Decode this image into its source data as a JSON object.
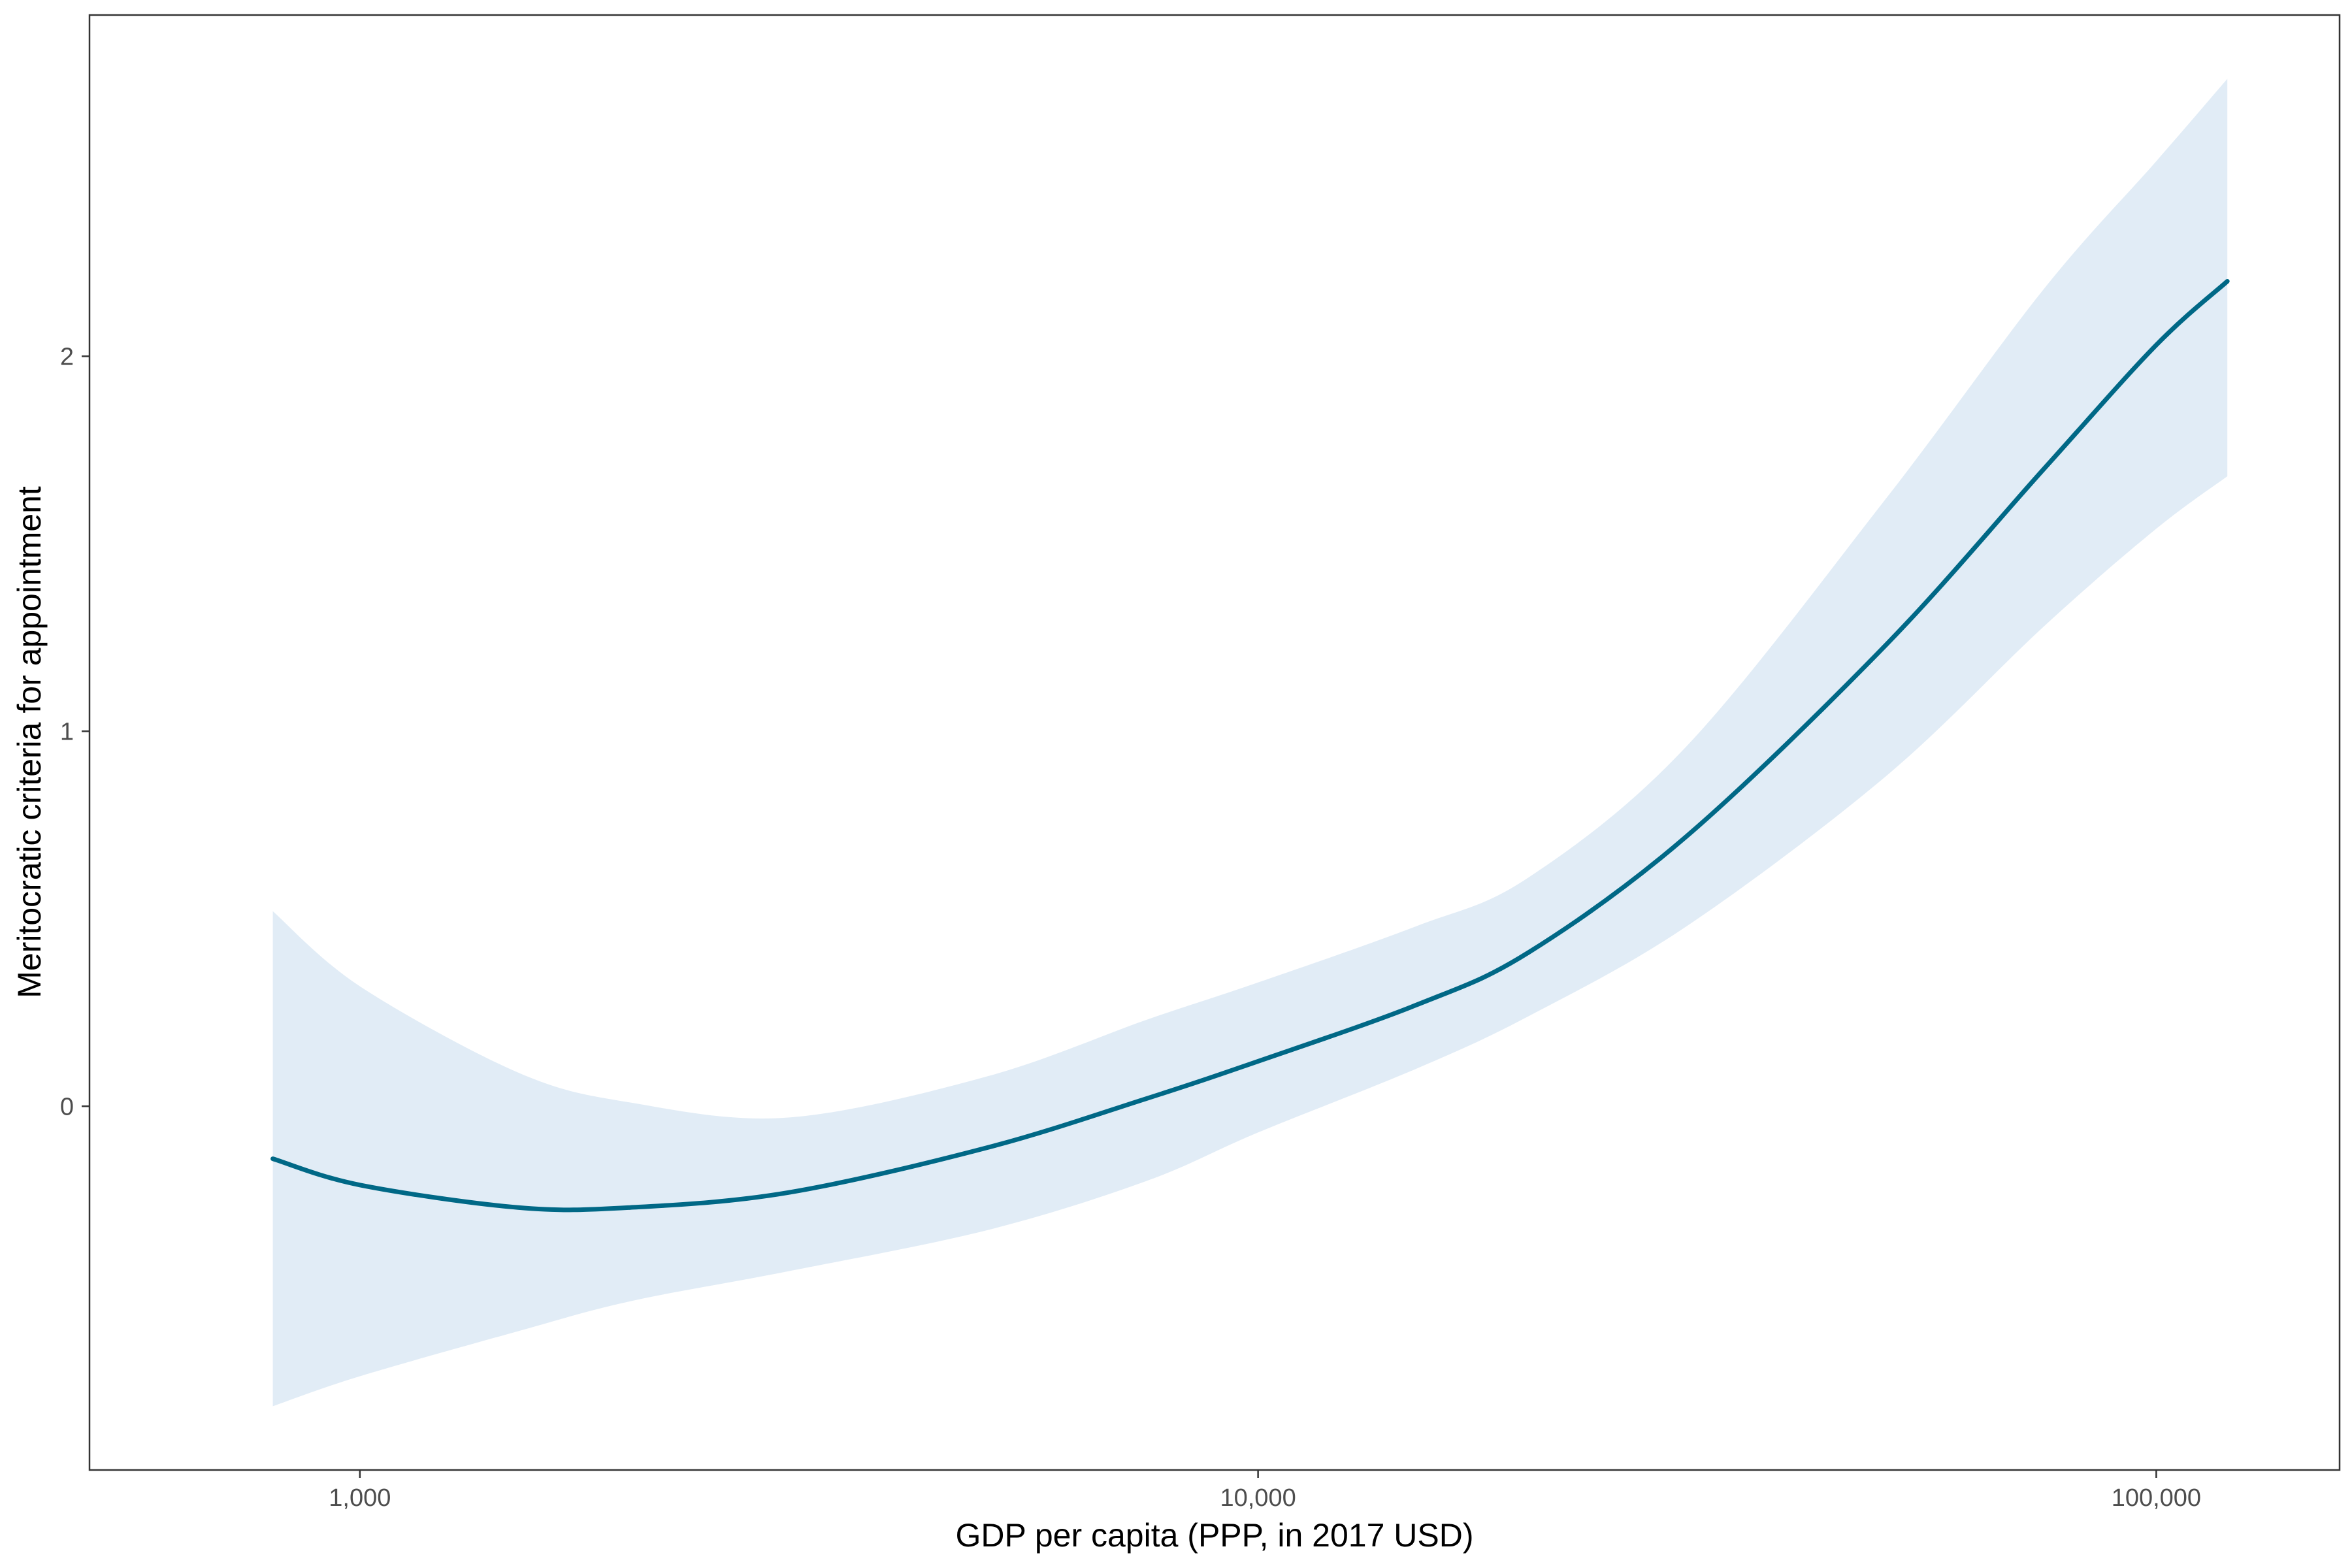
{
  "chart_data": {
    "type": "line",
    "title": "",
    "xlabel": "GDP per capita (PPP, in 2017 USD)",
    "ylabel": "Meritocratic criteria for appointment",
    "x_scale": "log10",
    "xlim": [
      500,
      160000
    ],
    "ylim": [
      -0.97,
      2.91
    ],
    "x_ticks": [
      {
        "value": 1000,
        "label": "1,000"
      },
      {
        "value": 10000,
        "label": "10,000"
      },
      {
        "value": 100000,
        "label": "100,000"
      }
    ],
    "y_ticks": [
      {
        "value": 0,
        "label": "0"
      },
      {
        "value": 1,
        "label": "1"
      },
      {
        "value": 2,
        "label": "2"
      }
    ],
    "grid": false,
    "legend": "none",
    "colors": {
      "line": "#006886",
      "band": "#e1ecf6",
      "frame": "#333333"
    },
    "series": [
      {
        "values": [
          {
            "x": 800,
            "y": -0.14,
            "lo": -0.8,
            "hi": 0.52
          },
          {
            "x": 1000,
            "y": -0.21,
            "lo": -0.72,
            "hi": 0.32
          },
          {
            "x": 1500,
            "y": -0.27,
            "lo": -0.6,
            "hi": 0.09
          },
          {
            "x": 2000,
            "y": -0.27,
            "lo": -0.52,
            "hi": 0.01
          },
          {
            "x": 3000,
            "y": -0.23,
            "lo": -0.44,
            "hi": -0.03
          },
          {
            "x": 5000,
            "y": -0.11,
            "lo": -0.33,
            "hi": 0.08
          },
          {
            "x": 7500,
            "y": 0.02,
            "lo": -0.2,
            "hi": 0.23
          },
          {
            "x": 10000,
            "y": 0.12,
            "lo": -0.07,
            "hi": 0.33
          },
          {
            "x": 15000,
            "y": 0.27,
            "lo": 0.1,
            "hi": 0.48
          },
          {
            "x": 20000,
            "y": 0.41,
            "lo": 0.24,
            "hi": 0.61
          },
          {
            "x": 30000,
            "y": 0.72,
            "lo": 0.48,
            "hi": 0.96
          },
          {
            "x": 50000,
            "y": 1.23,
            "lo": 0.88,
            "hi": 1.62
          },
          {
            "x": 75000,
            "y": 1.7,
            "lo": 1.28,
            "hi": 2.18
          },
          {
            "x": 100000,
            "y": 2.03,
            "lo": 1.54,
            "hi": 2.52
          },
          {
            "x": 120000,
            "y": 2.2,
            "lo": 1.68,
            "hi": 2.74
          }
        ]
      }
    ]
  }
}
